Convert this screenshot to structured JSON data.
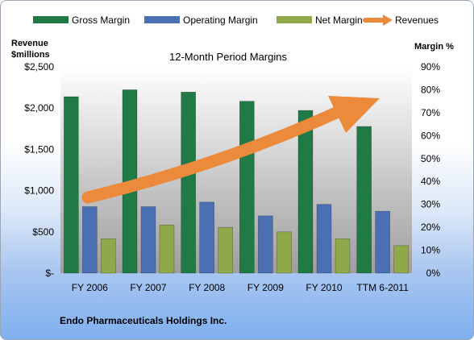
{
  "chart_data": {
    "type": "bar",
    "title": "12-Month Period Margins",
    "categories": [
      "FY 2006",
      "FY 2007",
      "FY 2008",
      "FY 2009",
      "FY 2010",
      "TTM 6-2011"
    ],
    "series": [
      {
        "name": "Gross Margin",
        "axis": "right",
        "color": "#1f7a45",
        "values": [
          77,
          80,
          79,
          75,
          71,
          64
        ]
      },
      {
        "name": "Operating Margin",
        "axis": "right",
        "color": "#4a6fb3",
        "values": [
          29,
          29,
          31,
          25,
          30,
          27
        ]
      },
      {
        "name": "Net Margin",
        "axis": "right",
        "color": "#8fa84a",
        "values": [
          15,
          21,
          20,
          18,
          15,
          12
        ]
      }
    ],
    "revenues": {
      "name": "Revenues",
      "color": "#ec8a3c",
      "trend": "increasing arrow"
    },
    "y_left": {
      "label_line1": "Revenue",
      "label_line2": "$millions",
      "min": 0,
      "max": 2500,
      "ticks": [
        "$-",
        "$500",
        "$1,000",
        "$1,500",
        "$2,000",
        "$2,500"
      ]
    },
    "y_right": {
      "label": "Margin %",
      "min": 0,
      "max": 90,
      "ticks": [
        "0%",
        "10%",
        "20%",
        "30%",
        "40%",
        "50%",
        "60%",
        "70%",
        "80%",
        "90%"
      ]
    },
    "legend": {
      "position": "top"
    },
    "grid": false
  },
  "footer": "Endo Pharmaceuticals Holdings Inc."
}
